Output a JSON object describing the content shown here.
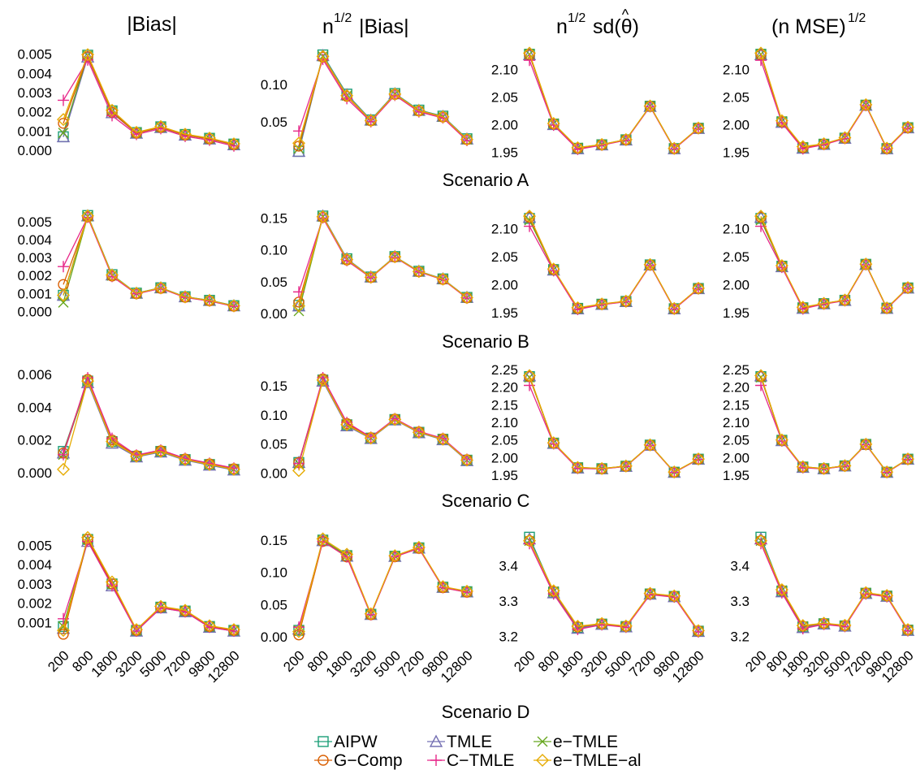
{
  "figure": {
    "column_titles": {
      "bias": "|Bias|",
      "root_n": "n",
      "exp": "1/2",
      "bias_suffix": "|Bias|",
      "sd_label": "sd(θ)",
      "hat": "^",
      "mse_label": "(n MSE)",
      "mse_exp": "1/2"
    },
    "legend": [
      {
        "name": "AIPW",
        "color": "#1b9e77",
        "marker": "square"
      },
      {
        "name": "TMLE",
        "color": "#7570b3",
        "marker": "triangle"
      },
      {
        "name": "e−TMLE",
        "color": "#66a61e",
        "marker": "x"
      },
      {
        "name": "G−Comp",
        "color": "#d95f02",
        "marker": "circle"
      },
      {
        "name": "C−TMLE",
        "color": "#e7298a",
        "marker": "plus"
      },
      {
        "name": "e−TMLE−al",
        "color": "#e6ab02",
        "marker": "diamond"
      }
    ]
  },
  "chart_data": {
    "type": "line",
    "x": [
      "200",
      "800",
      "1800",
      "3200",
      "5000",
      "7200",
      "9800",
      "12800"
    ],
    "series_names": [
      "AIPW",
      "TMLE",
      "e−TMLE",
      "G−Comp",
      "C−TMLE",
      "e−TMLE−al"
    ],
    "scenarios": [
      {
        "label": "Scenario A",
        "panels": [
          {
            "ylim": [
              -0.0003,
              0.0052
            ],
            "yticks": [
              {
                "v": 0.0,
                "t": "0.000"
              },
              {
                "v": 0.001,
                "t": "0.001"
              },
              {
                "v": 0.002,
                "t": "0.002"
              },
              {
                "v": 0.003,
                "t": "0.003"
              },
              {
                "v": 0.004,
                "t": "0.004"
              },
              {
                "v": 0.005,
                "t": "0.005"
              }
            ],
            "first": [
              0.0007,
              0.0007,
              0.0009,
              0.0014,
              0.0026,
              0.0016
            ],
            "base": [
              0.0049,
              0.002,
              0.0009,
              0.0012,
              0.0008,
              0.0006,
              0.0003
            ],
            "jitter": [
              5e-05,
              -5e-05,
              3e-05,
              -3e-05,
              -0.0002,
              8e-05
            ]
          },
          {
            "ylim": [
              0.005,
              0.145
            ],
            "yticks": [
              {
                "v": 0.05,
                "t": "0.05"
              },
              {
                "v": 0.1,
                "t": "0.10"
              }
            ],
            "first": [
              0.011,
              0.011,
              0.015,
              0.018,
              0.038,
              0.022
            ],
            "base": [
              0.137,
              0.085,
              0.052,
              0.087,
              0.065,
              0.057,
              0.027
            ],
            "jitter": [
              0.002,
              0.001,
              0.0,
              -0.001,
              -0.004,
              0.0
            ]
          },
          {
            "ylim": [
              1.943,
              2.135
            ],
            "yticks": [
              {
                "v": 1.95,
                "t": "1.95"
              },
              {
                "v": 2.0,
                "t": "2.00"
              },
              {
                "v": 2.05,
                "t": "2.05"
              },
              {
                "v": 2.1,
                "t": "2.10"
              }
            ],
            "first": [
              2.128,
              2.127,
              2.128,
              2.127,
              2.117,
              2.13
            ],
            "base": [
              2.0,
              1.956,
              1.963,
              1.972,
              2.033,
              1.956,
              1.993
            ],
            "jitter": [
              0.001,
              0.0,
              0.002,
              0.001,
              -0.001,
              0.002
            ]
          },
          {
            "ylim": [
              1.943,
              2.135
            ],
            "yticks": [
              {
                "v": 1.95,
                "t": "1.95"
              },
              {
                "v": 2.0,
                "t": "2.00"
              },
              {
                "v": 2.05,
                "t": "2.05"
              },
              {
                "v": 2.1,
                "t": "2.10"
              }
            ],
            "first": [
              2.128,
              2.127,
              2.128,
              2.127,
              2.117,
              2.13
            ],
            "base": [
              2.004,
              1.957,
              1.964,
              1.975,
              2.035,
              1.956,
              1.994
            ],
            "jitter": [
              0.001,
              0.0,
              0.002,
              0.001,
              -0.001,
              0.003
            ]
          }
        ]
      },
      {
        "label": "Scenario B",
        "panels": [
          {
            "ylim": [
              -0.0003,
              0.0055
            ],
            "yticks": [
              {
                "v": 0.0,
                "t": "0.000"
              },
              {
                "v": 0.001,
                "t": "0.001"
              },
              {
                "v": 0.002,
                "t": "0.002"
              },
              {
                "v": 0.003,
                "t": "0.003"
              },
              {
                "v": 0.004,
                "t": "0.004"
              },
              {
                "v": 0.005,
                "t": "0.005"
              }
            ],
            "first": [
              0.0009,
              0.0009,
              0.0005,
              0.0015,
              0.0025,
              0.0009
            ],
            "base": [
              0.0053,
              0.002,
              0.001,
              0.0013,
              0.0008,
              0.0006,
              0.0003
            ],
            "jitter": [
              5e-05,
              3e-05,
              0.0,
              -3e-05,
              -5e-05,
              3e-05
            ]
          },
          {
            "ylim": [
              -0.005,
              0.158
            ],
            "yticks": [
              {
                "v": 0.0,
                "t": "0.00"
              },
              {
                "v": 0.05,
                "t": "0.05"
              },
              {
                "v": 0.1,
                "t": "0.10"
              },
              {
                "v": 0.15,
                "t": "0.15"
              }
            ],
            "first": [
              0.013,
              0.012,
              0.004,
              0.018,
              0.034,
              0.012
            ],
            "base": [
              0.152,
              0.085,
              0.057,
              0.089,
              0.066,
              0.054,
              0.025
            ],
            "jitter": [
              0.001,
              0.001,
              0.0,
              -0.001,
              -0.002,
              0.0
            ]
          },
          {
            "ylim": [
              1.943,
              2.128
            ],
            "yticks": [
              {
                "v": 1.95,
                "t": "1.95"
              },
              {
                "v": 2.0,
                "t": "2.00"
              },
              {
                "v": 2.05,
                "t": "2.05"
              },
              {
                "v": 2.1,
                "t": "2.10"
              }
            ],
            "first": [
              2.118,
              2.12,
              2.115,
              2.12,
              2.104,
              2.122
            ],
            "base": [
              2.026,
              1.957,
              1.965,
              1.97,
              2.035,
              1.957,
              1.993
            ],
            "jitter": [
              0.001,
              0.0,
              0.001,
              0.001,
              -0.001,
              0.002
            ]
          },
          {
            "ylim": [
              1.943,
              2.128
            ],
            "yticks": [
              {
                "v": 1.95,
                "t": "1.95"
              },
              {
                "v": 2.0,
                "t": "2.00"
              },
              {
                "v": 2.05,
                "t": "2.05"
              },
              {
                "v": 2.1,
                "t": "2.10"
              }
            ],
            "first": [
              2.118,
              2.12,
              2.115,
              2.12,
              2.104,
              2.122
            ],
            "base": [
              2.032,
              1.958,
              1.966,
              1.972,
              2.036,
              1.958,
              1.994
            ],
            "jitter": [
              0.001,
              0.0,
              0.001,
              0.001,
              -0.001,
              0.002
            ]
          }
        ]
      },
      {
        "label": "Scenario C",
        "panels": [
          {
            "ylim": [
              -0.0003,
              0.0063
            ],
            "yticks": [
              {
                "v": 0.0,
                "t": "0.000"
              },
              {
                "v": 0.002,
                "t": "0.002"
              },
              {
                "v": 0.004,
                "t": "0.004"
              },
              {
                "v": 0.006,
                "t": "0.006"
              }
            ],
            "first": [
              0.0013,
              0.0012,
              0.0011,
              0.0012,
              0.0011,
              0.0002
            ],
            "base": [
              0.0056,
              0.0019,
              0.001,
              0.0013,
              0.0008,
              0.0005,
              0.0002
            ],
            "jitter": [
              0.0,
              -0.0001,
              0.0,
              0.0001,
              0.0002,
              0.0
            ]
          },
          {
            "ylim": [
              -0.008,
              0.178
            ],
            "yticks": [
              {
                "v": 0.0,
                "t": "0.00"
              },
              {
                "v": 0.05,
                "t": "0.05"
              },
              {
                "v": 0.1,
                "t": "0.10"
              },
              {
                "v": 0.15,
                "t": "0.15"
              }
            ],
            "first": [
              0.018,
              0.018,
              0.016,
              0.018,
              0.016,
              0.004
            ],
            "base": [
              0.16,
              0.083,
              0.06,
              0.092,
              0.07,
              0.058,
              0.022
            ],
            "jitter": [
              0.0,
              -0.002,
              0.0,
              0.002,
              0.004,
              0.0
            ]
          },
          {
            "ylim": [
              1.943,
              2.25
            ],
            "yticks": [
              {
                "v": 1.95,
                "t": "1.95"
              },
              {
                "v": 2.0,
                "t": "2.00"
              },
              {
                "v": 2.05,
                "t": "2.05"
              },
              {
                "v": 2.1,
                "t": "2.10"
              },
              {
                "v": 2.15,
                "t": "2.15"
              },
              {
                "v": 2.2,
                "t": "2.20"
              },
              {
                "v": 2.25,
                "t": "2.25"
              }
            ],
            "first": [
              2.23,
              2.232,
              2.228,
              2.23,
              2.205,
              2.233
            ],
            "base": [
              2.04,
              1.97,
              1.968,
              1.975,
              2.035,
              1.958,
              1.995
            ],
            "jitter": [
              0.001,
              0.0,
              0.002,
              0.001,
              -0.001,
              0.002
            ]
          },
          {
            "ylim": [
              1.943,
              2.25
            ],
            "yticks": [
              {
                "v": 1.95,
                "t": "1.95"
              },
              {
                "v": 2.0,
                "t": "2.00"
              },
              {
                "v": 2.05,
                "t": "2.05"
              },
              {
                "v": 2.1,
                "t": "2.10"
              },
              {
                "v": 2.15,
                "t": "2.15"
              },
              {
                "v": 2.2,
                "t": "2.20"
              },
              {
                "v": 2.25,
                "t": "2.25"
              }
            ],
            "first": [
              2.23,
              2.232,
              2.228,
              2.23,
              2.205,
              2.233
            ],
            "base": [
              2.048,
              1.972,
              1.968,
              1.976,
              2.037,
              1.958,
              1.995
            ],
            "jitter": [
              0.001,
              0.0,
              0.002,
              0.001,
              -0.001,
              0.002
            ]
          }
        ]
      },
      {
        "label": "Scenario D",
        "panels": [
          {
            "ylim": [
              0.0001,
              0.0056
            ],
            "yticks": [
              {
                "v": 0.001,
                "t": "0.001"
              },
              {
                "v": 0.002,
                "t": "0.002"
              },
              {
                "v": 0.003,
                "t": "0.003"
              },
              {
                "v": 0.004,
                "t": "0.004"
              },
              {
                "v": 0.005,
                "t": "0.005"
              }
            ],
            "first": [
              0.0008,
              0.0007,
              0.0008,
              0.0004,
              0.0012,
              0.0006
            ],
            "base": [
              0.0053,
              0.003,
              0.0006,
              0.0018,
              0.0016,
              0.0008,
              0.0006
            ],
            "jitter": [
              0.0,
              -0.0001,
              0.0,
              0.0,
              -0.0001,
              0.0001
            ]
          },
          {
            "ylim": [
              -0.005,
              0.16
            ],
            "yticks": [
              {
                "v": 0.0,
                "t": "0.00"
              },
              {
                "v": 0.05,
                "t": "0.05"
              },
              {
                "v": 0.1,
                "t": "0.10"
              },
              {
                "v": 0.15,
                "t": "0.15"
              }
            ],
            "first": [
              0.01,
              0.012,
              0.01,
              0.003,
              0.015,
              0.008
            ],
            "base": [
              0.15,
              0.126,
              0.035,
              0.125,
              0.138,
              0.077,
              0.07
            ],
            "jitter": [
              0.0,
              -0.001,
              0.0,
              -0.002,
              -0.002,
              0.002
            ]
          },
          {
            "ylim": [
              3.19,
              3.49
            ],
            "yticks": [
              {
                "v": 3.2,
                "t": "3.2"
              },
              {
                "v": 3.3,
                "t": "3.3"
              },
              {
                "v": 3.4,
                "t": "3.4"
              }
            ],
            "first": [
              3.48,
              3.475,
              3.47,
              3.47,
              3.462,
              3.47
            ],
            "base": [
              3.325,
              3.225,
              3.235,
              3.228,
              3.32,
              3.313,
              3.215
            ],
            "jitter": [
              0.0,
              -0.002,
              0.002,
              0.002,
              -0.005,
              0.004
            ]
          },
          {
            "ylim": [
              3.19,
              3.49
            ],
            "yticks": [
              {
                "v": 3.2,
                "t": "3.2"
              },
              {
                "v": 3.3,
                "t": "3.3"
              },
              {
                "v": 3.4,
                "t": "3.4"
              }
            ],
            "first": [
              3.48,
              3.475,
              3.47,
              3.47,
              3.462,
              3.47
            ],
            "base": [
              3.328,
              3.227,
              3.236,
              3.23,
              3.322,
              3.314,
              3.218
            ],
            "jitter": [
              0.0,
              -0.002,
              0.002,
              0.002,
              -0.005,
              0.004
            ]
          }
        ]
      }
    ]
  }
}
